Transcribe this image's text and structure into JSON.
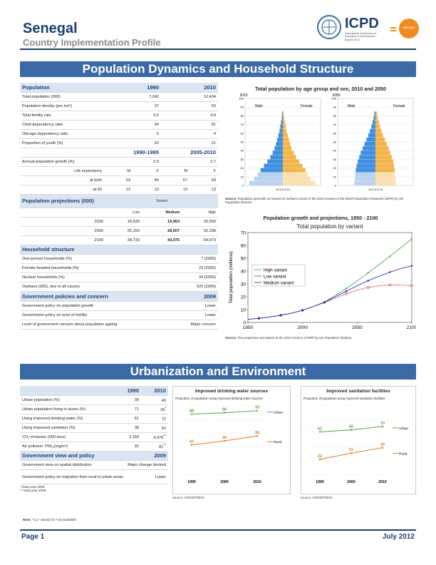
{
  "header": {
    "country": "Senegal",
    "subtitle": "Country Implementation Profile",
    "icpd_label": "ICPD",
    "icpd_tagline": [
      "International Conference on",
      "Population & Development",
      "Beyond 2014"
    ],
    "year_badge": "ICPD 2014"
  },
  "section1": {
    "title": "Population Dynamics and Household Structure"
  },
  "population": {
    "header": {
      "label": "Population",
      "y1": "1990",
      "y2": "2010"
    },
    "rows": [
      {
        "label": "Total population (000)",
        "v1": "7,242",
        "v2": "12,434"
      },
      {
        "label": "Population density (per km²)",
        "v1": "37",
        "v2": "63"
      },
      {
        "label": "Total fertility rate",
        "v1": "6.6",
        "v2": "4.8"
      },
      {
        "label": "Child dependency ratio",
        "v1": "94",
        "v2": "81"
      },
      {
        "label": "Old-age dependency ratio",
        "v1": "5",
        "v2": "4"
      },
      {
        "label": "Proportion of youth (%)",
        "v1": "20",
        "v2": "21"
      }
    ],
    "period_header": {
      "p1": "1990-1995",
      "p2": "2005-2010"
    },
    "growth": {
      "label": "Annual population growth (%)",
      "v1": "2.9",
      "v2": "2.7"
    },
    "le_header": {
      "label": "Life expectancy",
      "m1": "M",
      "f1": "F",
      "m2": "M",
      "f2": "F"
    },
    "le_rows": [
      {
        "label": "at birth",
        "a": "53",
        "b": "55",
        "c": "57",
        "d": "59"
      },
      {
        "label": "at 60",
        "a": "13",
        "b": "13",
        "c": "13",
        "d": "13"
      }
    ]
  },
  "projections": {
    "title": "Population projections (000)",
    "variant": "Variant",
    "cols": [
      "Low",
      "Medium",
      "High"
    ],
    "rows": [
      {
        "year": "2030",
        "low": "18,939",
        "medium": "19,963",
        "high": "20,990"
      },
      {
        "year": "2050",
        "low": "25,150",
        "medium": "28,607",
        "high": "32,298"
      },
      {
        "year": "2100",
        "low": "28,733",
        "medium": "44,075",
        "high": "64,973"
      }
    ]
  },
  "household": {
    "title": "Household structure",
    "rows": [
      {
        "label": "One-person households (%)",
        "value": "7 (2005)"
      },
      {
        "label": "Female-headed households (%)",
        "value": "23 (2005)"
      },
      {
        "label": "Nuclear households (%)",
        "value": "34 (2005)"
      },
      {
        "label": "Orphans (000), due to all causes",
        "value": "520 (2009)"
      }
    ]
  },
  "policies": {
    "title": "Government policies and concern",
    "year": "2009",
    "rows": [
      {
        "label": "Government policy on population growth",
        "value": "Lower"
      },
      {
        "label": "Government policy on level of fertility",
        "value": "Lower"
      },
      {
        "label": "Level of government concern about population ageing",
        "value": "Major concern"
      }
    ]
  },
  "pyramid": {
    "title": "Total population by age group and sex, 2010 and 2050",
    "years": [
      "2010",
      "2050"
    ],
    "male": "Male",
    "female": "Female",
    "y_ticks": [
      "100",
      "90",
      "80",
      "70",
      "60",
      "50",
      "40",
      "30",
      "20",
      "10",
      "0"
    ],
    "x_ticks": "10  5  0  5  10",
    "source_label": "Source:",
    "source": "Population pyramids are based on medium variant of the 2010 revision of the World Population Prospects (WPP) by UN Population Division."
  },
  "growth_chart": {
    "title": "Population growth and projections, 1950 - 2100",
    "source_label": "Source:",
    "source": "The projections are based on the 2010 revision of WPP by UN Population Division."
  },
  "section2": {
    "title": "Urbanization and Environment"
  },
  "urban": {
    "header": {
      "y1": "1990",
      "y2": "2010"
    },
    "rows": [
      {
        "label": "Urban population (%)",
        "v1": "39",
        "v2": "40",
        "mark": ""
      },
      {
        "label": "Urban population living in slums (%)",
        "v1": "71",
        "v2": "39",
        "mark": "*"
      },
      {
        "label": "Using improved drinking water (%)",
        "v1": "61",
        "v2": "72",
        "mark": ""
      },
      {
        "label": "Using improved sanitation (%)",
        "v1": "38",
        "v2": "52",
        "mark": ""
      },
      {
        "label": "CO₂ emission (000 tons)",
        "v1": "3,183",
        "v2": "4,976",
        "mark": "**"
      },
      {
        "label": "Air pollution: PM₁₀(mg/m³)",
        "v1": "92",
        "v2": "81",
        "mark": "**"
      }
    ],
    "view": {
      "title": "Government view and policy",
      "year": "2009"
    },
    "view_rows": [
      {
        "label": "Government view on spatial distribution",
        "value": "Major change desired"
      },
      {
        "label": "Government policy on migration from rural to urban areas",
        "value": "Lower"
      }
    ],
    "footnotes": [
      "* Data year 2009",
      "** Data year 2008"
    ],
    "note_label": "Note:",
    "note": "\"n.a.\" stands for \"not available\"."
  },
  "water_chart": {
    "title": "Improved drinking water sources",
    "subtitle": "Proportion of population using improved drinking water sources",
    "source": "Source: UNICEF/WHO"
  },
  "sanitation_chart": {
    "title": "Improved sanitation facilities",
    "subtitle": "Proportion of population using improved sanitation facilities",
    "source": "Source: UNICEF/WHO"
  },
  "footer": {
    "page": "Page 1",
    "date": "July 2012"
  },
  "colors": {
    "navy": "#1f3f6d",
    "banner": "#3c6aa6",
    "male": "#3f8fe0",
    "female": "#f3b54a",
    "urban": "#5aa34a",
    "rural": "#e07b20",
    "high": "#3fa33f",
    "low": "#d02020",
    "medium": "#1a1acc"
  },
  "chart_data": [
    {
      "type": "line",
      "title": "Total population by variant",
      "xlabel": "",
      "ylabel": "Total population (millions)",
      "xlim": [
        1950,
        2100
      ],
      "ylim": [
        0,
        70
      ],
      "x_ticks": [
        1950,
        2000,
        2050,
        2100
      ],
      "y_ticks": [
        0,
        10,
        20,
        30,
        40,
        50,
        60,
        70
      ],
      "legend_position": "left",
      "series": [
        {
          "name": "High variant",
          "x": [
            1950,
            1960,
            1970,
            1980,
            1990,
            2000,
            2010,
            2020,
            2030,
            2040,
            2050,
            2060,
            2070,
            2080,
            2090,
            2100
          ],
          "values": [
            2.5,
            3.2,
            4.3,
            5.6,
            7.2,
            9.5,
            12.4,
            15.9,
            21.0,
            26.4,
            32.3,
            38.6,
            45.0,
            51.5,
            58.2,
            65.0
          ]
        },
        {
          "name": "Low variant",
          "x": [
            1950,
            1960,
            1970,
            1980,
            1990,
            2000,
            2010,
            2020,
            2030,
            2040,
            2050,
            2060,
            2070,
            2080,
            2090,
            2100
          ],
          "values": [
            2.5,
            3.2,
            4.3,
            5.6,
            7.2,
            9.5,
            12.4,
            15.5,
            18.9,
            22.3,
            25.2,
            27.2,
            28.6,
            29.2,
            29.1,
            28.7
          ]
        },
        {
          "name": "Medium variant",
          "x": [
            1950,
            1960,
            1970,
            1980,
            1990,
            2000,
            2010,
            2020,
            2030,
            2040,
            2050,
            2060,
            2070,
            2080,
            2090,
            2100
          ],
          "values": [
            2.5,
            3.2,
            4.3,
            5.6,
            7.2,
            9.5,
            12.4,
            15.7,
            20.0,
            24.3,
            28.6,
            32.5,
            36.0,
            39.2,
            42.0,
            44.1
          ]
        }
      ]
    },
    {
      "type": "line",
      "title": "Improved drinking water sources",
      "categories": [
        "1990",
        "2000",
        "2010"
      ],
      "ylim": [
        0,
        100
      ],
      "series": [
        {
          "name": "Urban",
          "values": [
            88,
            90,
            93
          ]
        },
        {
          "name": "Rural",
          "values": [
            43,
            49,
            56
          ]
        }
      ]
    },
    {
      "type": "line",
      "title": "Improved sanitation facilities",
      "categories": [
        "1990",
        "2000",
        "2010"
      ],
      "ylim": [
        0,
        100
      ],
      "series": [
        {
          "name": "Urban",
          "values": [
            62,
            65,
            70
          ]
        },
        {
          "name": "Rural",
          "values": [
            22,
            31,
            39
          ]
        }
      ]
    },
    {
      "type": "bar",
      "title": "Total population by age group and sex, 2010",
      "age_groups": [
        "0-4",
        "5-9",
        "10-14",
        "15-19",
        "20-24",
        "25-29",
        "30-34",
        "35-39",
        "40-44",
        "45-49",
        "50-54",
        "55-59",
        "60-64",
        "65-69",
        "70-74",
        "75-79",
        "80+"
      ],
      "series": [
        {
          "name": "Male",
          "values": [
            8.9,
            7.6,
            6.7,
            5.9,
            5.0,
            4.1,
            3.3,
            2.7,
            2.2,
            1.8,
            1.5,
            1.2,
            0.9,
            0.7,
            0.5,
            0.3,
            0.2
          ]
        },
        {
          "name": "Female",
          "values": [
            8.6,
            7.4,
            6.6,
            6.0,
            5.2,
            4.3,
            3.5,
            2.9,
            2.3,
            1.9,
            1.6,
            1.3,
            1.0,
            0.8,
            0.6,
            0.4,
            0.2
          ]
        }
      ]
    },
    {
      "type": "bar",
      "title": "Total population by age group and sex, 2050",
      "age_groups": [
        "0-4",
        "5-9",
        "10-14",
        "15-19",
        "20-24",
        "25-29",
        "30-34",
        "35-39",
        "40-44",
        "45-49",
        "50-54",
        "55-59",
        "60-64",
        "65-69",
        "70-74",
        "75-79",
        "80+"
      ],
      "series": [
        {
          "name": "Male",
          "values": [
            5.6,
            5.5,
            5.4,
            5.2,
            5.0,
            4.7,
            4.3,
            3.9,
            3.4,
            2.9,
            2.4,
            1.9,
            1.5,
            1.1,
            0.8,
            0.5,
            0.3
          ]
        },
        {
          "name": "Female",
          "values": [
            5.4,
            5.3,
            5.2,
            5.1,
            4.9,
            4.7,
            4.3,
            3.9,
            3.5,
            3.0,
            2.5,
            2.0,
            1.6,
            1.2,
            0.9,
            0.6,
            0.4
          ]
        }
      ]
    }
  ]
}
